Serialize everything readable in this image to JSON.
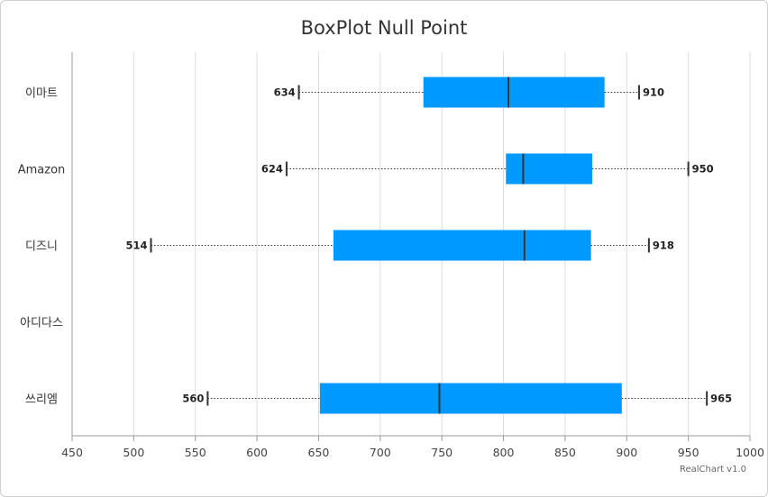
{
  "chart_data": {
    "type": "boxplot",
    "title": "BoxPlot Null Point",
    "categories": [
      "이마트",
      "Amazon",
      "디즈니",
      "아디다스",
      "쓰리엠"
    ],
    "series": [
      {
        "values": [
          {
            "category": "이마트",
            "min": 634,
            "q1": 735,
            "median": 804,
            "q3": 882,
            "max": 910
          },
          {
            "category": "Amazon",
            "min": 624,
            "q1": 802,
            "median": 816,
            "q3": 872,
            "max": 950
          },
          {
            "category": "디즈니",
            "min": 514,
            "q1": 662,
            "median": 817,
            "q3": 871,
            "max": 918
          },
          {
            "category": "아디다스",
            "min": null,
            "q1": null,
            "median": null,
            "q3": null,
            "max": null
          },
          {
            "category": "쓰리엠",
            "min": 560,
            "q1": 651,
            "median": 748,
            "q3": 896,
            "max": 965
          }
        ]
      }
    ],
    "xlim": [
      450,
      1000
    ],
    "xticks": [
      450,
      500,
      550,
      600,
      650,
      700,
      750,
      800,
      850,
      900,
      950,
      1000
    ],
    "grid": true,
    "orientation": "horizontal",
    "colors": {
      "box": "#0099ff",
      "median": "#333333",
      "whisker": "#333333",
      "grid": "#dddddd",
      "axis": "#999999"
    }
  },
  "credit": "RealChart v1.0"
}
